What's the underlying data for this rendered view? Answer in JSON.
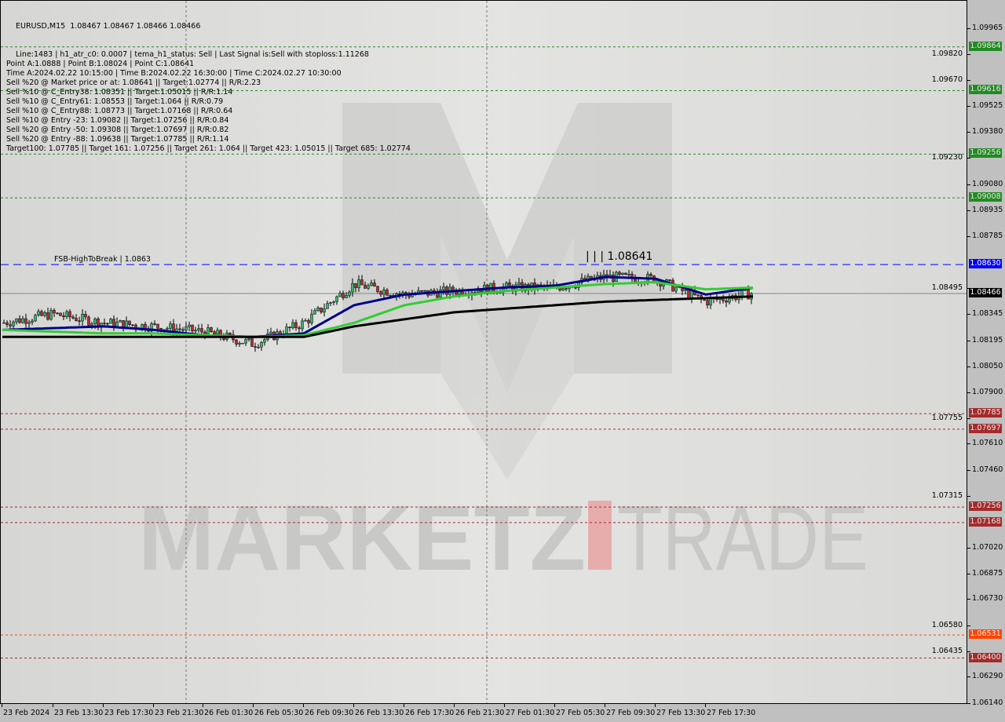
{
  "header": {
    "symbol_line": "EURUSD,M15  1.08467 1.08467 1.08466 1.08466",
    "info_lines": [
      "Line:1483 | h1_atr_c0: 0.0007 | tema_h1_status: Sell | Last Signal is:Sell with stoploss:1.11268",
      "Point A:1.0888 | Point B:1.08024 | Point C:1.08641",
      "Time A:2024.02.22 10:15:00 | Time B:2024.02.22 16:30:00 | Time C:2024.02.27 10:30:00",
      "Sell %20 @ Market price or at: 1.08641 || Target:1.02774 || R/R:2.23",
      "Sell %10 @ C_Entry38: 1.08351 || Target:1.05015 || R/R:1.14",
      "Sell %10 @ C_Entry61: 1.08553 || Target:1.064 || R/R:0.79",
      "Sell %10 @ C_Entry88: 1.08773 || Target:1.07168 || R/R:0.64",
      "Sell %10 @ Entry -23: 1.09082 || Target:1.07256 || R/R:0.84",
      "Sell %20 @ Entry -50: 1.09308 || Target:1.07697 || R/R:0.82",
      "Sell %20 @ Entry -88: 1.09638 || Target:1.07785 || R/R:1.14",
      "Target100: 1.07785 || Target 161: 1.07256 || Target 261: 1.064 || Target 423: 1.05015 || Target 685: 1.02774"
    ]
  },
  "annotations": {
    "fsb": "FSB-HighToBreak | 1.0863",
    "point_c": "| | | 1.08641"
  },
  "watermark": {
    "text_left": "MARKETZ",
    "text_right": "TRADE"
  },
  "colors": {
    "up_level": "#228b22",
    "down_level": "#a52a2a",
    "break_level": "#0000ff",
    "current": "#000000",
    "orange_level": "#ff4500",
    "ma_fast": "#00008b",
    "ma_mid": "#32cd32",
    "ma_slow": "#000000"
  },
  "chart_data": {
    "type": "candlestick",
    "symbol": "EURUSD",
    "timeframe": "M15",
    "ylim": [
      1.0614,
      1.09965
    ],
    "y_ticks": [
      "1.09965",
      "1.09820",
      "1.09670",
      "1.09525",
      "1.09380",
      "1.09230",
      "1.09080",
      "1.08935",
      "1.08785",
      "1.08495",
      "1.08345",
      "1.08195",
      "1.08050",
      "1.07900",
      "1.07755",
      "1.07610",
      "1.07460",
      "1.07315",
      "1.07020",
      "1.06875",
      "1.06730",
      "1.06580",
      "1.06435",
      "1.06290",
      "1.06140"
    ],
    "x_ticks": [
      "23 Feb 2024",
      "23 Feb 13:30",
      "23 Feb 17:30",
      "23 Feb 21:30",
      "26 Feb 01:30",
      "26 Feb 05:30",
      "26 Feb 09:30",
      "26 Feb 13:30",
      "26 Feb 17:30",
      "26 Feb 21:30",
      "27 Feb 01:30",
      "27 Feb 05:30",
      "27 Feb 09:30",
      "27 Feb 13:30",
      "27 Feb 17:30"
    ],
    "approx_close_at_ticks": [
      1.083,
      1.0835,
      1.083,
      1.0828,
      1.0825,
      1.0818,
      1.083,
      1.0852,
      1.0846,
      1.0848,
      1.085,
      1.085,
      1.0856,
      1.0855,
      1.0842,
      1.0847
    ],
    "series": [
      {
        "key": "ma_fast",
        "values": [
          1.0826,
          1.0827,
          1.0828,
          1.0826,
          1.0823,
          1.0822,
          1.0824,
          1.084,
          1.0846,
          1.0848,
          1.085,
          1.0851,
          1.0856,
          1.0855,
          1.0846,
          1.085
        ]
      },
      {
        "key": "ma_mid",
        "values": [
          1.0826,
          1.0825,
          1.0824,
          1.0824,
          1.0823,
          1.0822,
          1.0823,
          1.083,
          1.084,
          1.0845,
          1.0848,
          1.085,
          1.0852,
          1.0853,
          1.0849,
          1.085
        ]
      },
      {
        "key": "ma_slow",
        "values": [
          1.0822,
          1.0822,
          1.0822,
          1.0822,
          1.0822,
          1.0822,
          1.0822,
          1.0828,
          1.0832,
          1.0836,
          1.0838,
          1.084,
          1.0842,
          1.0843,
          1.0844,
          1.0845
        ]
      }
    ],
    "levels": [
      {
        "price": "1.09864",
        "kind": "up_level"
      },
      {
        "price": "1.09616",
        "kind": "up_level"
      },
      {
        "price": "1.09256",
        "kind": "up_level"
      },
      {
        "price": "1.09008",
        "kind": "up_level"
      },
      {
        "price": "1.08630",
        "kind": "break_level"
      },
      {
        "price": "1.08466",
        "kind": "current"
      },
      {
        "price": "1.07785",
        "kind": "down_level"
      },
      {
        "price": "1.07697",
        "kind": "down_level"
      },
      {
        "price": "1.07256",
        "kind": "down_level"
      },
      {
        "price": "1.07168",
        "kind": "down_level"
      },
      {
        "price": "1.06531",
        "kind": "orange_level"
      },
      {
        "price": "1.06400",
        "kind": "down_level"
      }
    ]
  }
}
